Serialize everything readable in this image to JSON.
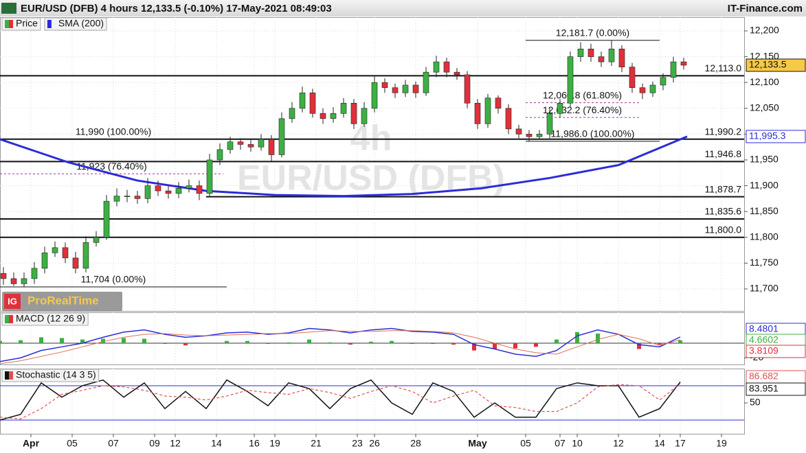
{
  "header": {
    "title": "EUR/USD (DFB) 4 hours 12,133.5 (-0.10%) 17-May-2021 08:49:03",
    "site": "IT-Finance.com",
    "badge": "ProRealTime",
    "badge_logo": "IG"
  },
  "chart_data": [
    {
      "type": "candlestick",
      "legend": [
        "Price",
        "SMA (200)"
      ],
      "watermark": [
        "4h",
        "EUR/USD (DFB)"
      ],
      "x": [
        1,
        4,
        7,
        10,
        13,
        16,
        19,
        22,
        25,
        28,
        31,
        34,
        37,
        40,
        43,
        46,
        49,
        52,
        55,
        58,
        61,
        64,
        67,
        70,
        73,
        76,
        79,
        82,
        85,
        88,
        91,
        94,
        97,
        100,
        103,
        106,
        109,
        112,
        115,
        118,
        121,
        124,
        127,
        130,
        133,
        136,
        139,
        142,
        145,
        148,
        151,
        154,
        157,
        160,
        163,
        166,
        169,
        172,
        175,
        178,
        181,
        184,
        187,
        190,
        193,
        196,
        199
      ],
      "open": [
        11730,
        11720,
        11710,
        11720,
        11740,
        11770,
        11780,
        11760,
        11740,
        11790,
        11800,
        11870,
        11880,
        11880,
        11875,
        11900,
        11890,
        11885,
        11895,
        11900,
        11885,
        11950,
        11970,
        11985,
        11980,
        11975,
        11990,
        11960,
        12030,
        12050,
        12080,
        12040,
        12030,
        12040,
        12060,
        12020,
        12050,
        12100,
        12090,
        12080,
        12095,
        12080,
        12120,
        12140,
        12120,
        12115,
        12060,
        12020,
        12070,
        12050,
        12010,
        12000,
        11995,
        12000,
        12040,
        12060,
        12150,
        12165,
        12150,
        12140,
        12165,
        12130,
        12090,
        12080,
        12095,
        12110,
        12140
      ],
      "high": [
        11742,
        11732,
        11732,
        11752,
        11782,
        11792,
        11790,
        11772,
        11802,
        11812,
        11882,
        11895,
        11892,
        11890,
        11915,
        11910,
        11900,
        11907,
        11912,
        11910,
        11962,
        11982,
        11995,
        11992,
        11990,
        12000,
        11998,
        12042,
        12062,
        12092,
        12088,
        12050,
        12052,
        12070,
        12068,
        12062,
        12112,
        12108,
        12098,
        12105,
        12102,
        12130,
        12152,
        12148,
        12128,
        12122,
        12068,
        12078,
        12075,
        12058,
        12018,
        12008,
        12008,
        12050,
        12068,
        12160,
        12178,
        12175,
        12160,
        12181.7,
        12172,
        12138,
        12098,
        12102,
        12118,
        12150,
        12148
      ],
      "low": [
        11708,
        11706,
        11704,
        11710,
        11730,
        11762,
        11750,
        11730,
        11732,
        11782,
        11795,
        11860,
        11868,
        11865,
        11866,
        11880,
        11875,
        11876,
        11887,
        11872,
        11878,
        11940,
        11962,
        11970,
        11966,
        11968,
        11948,
        11955,
        12022,
        12042,
        12032,
        12020,
        12022,
        12032,
        12010,
        12014,
        12042,
        12080,
        12070,
        12072,
        12070,
        12074,
        12110,
        12110,
        12105,
        12050,
        12010,
        12012,
        12040,
        12000,
        11992,
        11986,
        11989,
        11992,
        12032,
        12052,
        12140,
        12140,
        12130,
        12132,
        12120,
        12080,
        12068,
        12072,
        12085,
        12100,
        12125
      ],
      "close": [
        11720,
        11710,
        11720,
        11740,
        11770,
        11780,
        11760,
        11740,
        11790,
        11800,
        11870,
        11880,
        11880,
        11875,
        11900,
        11890,
        11885,
        11895,
        11900,
        11885,
        11950,
        11970,
        11985,
        11980,
        11975,
        11990,
        11960,
        12030,
        12050,
        12080,
        12040,
        12030,
        12040,
        12060,
        12020,
        12050,
        12100,
        12090,
        12080,
        12095,
        12080,
        12120,
        12140,
        12120,
        12115,
        12060,
        12020,
        12070,
        12050,
        12010,
        12000,
        11995,
        12000,
        12040,
        12060,
        12150,
        12165,
        12150,
        12140,
        12165,
        12130,
        12090,
        12080,
        12095,
        12110,
        12140,
        12133.5
      ],
      "up_color": "#3cb043",
      "down_color": "#e0303a",
      "last": {
        "value": 12133.5,
        "label": "12,133.5"
      },
      "series": [
        {
          "name": "SMA (200)",
          "color": "#2b2bd9",
          "x": [
            0,
            20,
            40,
            60,
            80,
            100,
            120,
            140,
            160,
            180,
            200
          ],
          "values": [
            11990,
            11945,
            11910,
            11890,
            11882,
            11880,
            11884,
            11895,
            11915,
            11940,
            11995.3
          ],
          "tag": {
            "value": 11995.3,
            "label": "11,995.3"
          }
        }
      ],
      "levels": [
        {
          "value": 12113.0,
          "label": "12,113.0",
          "from": 0
        },
        {
          "value": 11990.2,
          "label": "11,990.2",
          "from": 0
        },
        {
          "value": 11946.8,
          "label": "11,946.8",
          "from": 0
        },
        {
          "value": 11878.7,
          "label": "11,878.7",
          "from": 60
        },
        {
          "value": 11835.6,
          "label": "11,835.6",
          "from": 0
        },
        {
          "value": 11800.0,
          "label": "11,800.0",
          "from": 0
        }
      ],
      "fibs": [
        {
          "value": 12181.7,
          "label": "12,181.7 (0.00%)",
          "from": 153,
          "to": 192,
          "style": "solid"
        },
        {
          "value": 12060.8,
          "label": "12,060.8 (61.80%)",
          "from": 153,
          "to": 186,
          "style": "dashed"
        },
        {
          "value": 12032.2,
          "label": "12,032.2 (76.40%)",
          "from": 153,
          "to": 186,
          "style": "dashed"
        },
        {
          "value": 11986.0,
          "label": "11,986.0 (100.00%)",
          "from": 153,
          "to": 192,
          "style": "solid"
        },
        {
          "value": 11990,
          "label": "11,990 (100.00%)",
          "from": 0,
          "to": 66,
          "style": "none"
        },
        {
          "value": 11923,
          "label": "11,923 (76.40%)",
          "from": 0,
          "to": 65,
          "style": "dashed"
        },
        {
          "value": 11704,
          "label": "11,704 (0.00%)",
          "from": 0,
          "to": 66,
          "style": "solid"
        }
      ],
      "xlim": [
        0,
        216.6
      ],
      "ylim": [
        11657.4,
        12226.6
      ],
      "yticks": [
        {
          "value": 11700,
          "label": "11,700"
        },
        {
          "value": 11750,
          "label": "11,750"
        },
        {
          "value": 11800,
          "label": "11,800"
        },
        {
          "value": 11850,
          "label": "11,850"
        },
        {
          "value": 11900,
          "label": "11,900"
        },
        {
          "value": 11950,
          "label": "11,950"
        },
        {
          "value": 12000,
          "label": "12,000"
        },
        {
          "value": 12050,
          "label": "12,050"
        },
        {
          "value": 12100,
          "label": "12,100"
        },
        {
          "value": 12150,
          "label": "12,150"
        },
        {
          "value": 12200,
          "label": "12,200"
        }
      ]
    },
    {
      "type": "macd",
      "legend": [
        "MACD (12 26 9)"
      ],
      "x": [
        0,
        6,
        12,
        18,
        24,
        30,
        36,
        42,
        48,
        54,
        60,
        66,
        72,
        78,
        84,
        90,
        96,
        102,
        108,
        114,
        120,
        126,
        132,
        138,
        144,
        150,
        156,
        162,
        168,
        174,
        180,
        186,
        192,
        198
      ],
      "series": [
        {
          "name": "MACD",
          "color": "#2b2bd9",
          "values": [
            -25,
            -20,
            -10,
            -5,
            0,
            8,
            15,
            18,
            12,
            8,
            10,
            14,
            15,
            12,
            14,
            20,
            18,
            14,
            18,
            20,
            16,
            15,
            12,
            -2,
            -8,
            -15,
            -18,
            -10,
            10,
            18,
            12,
            -2,
            -5,
            8.4801
          ]
        },
        {
          "name": "Signal",
          "color": "#e07050",
          "values": [
            -28,
            -24,
            -18,
            -12,
            -5,
            2,
            8,
            12,
            13,
            11,
            10,
            11,
            12,
            13,
            13,
            15,
            17,
            16,
            16,
            17,
            17,
            16,
            14,
            8,
            0,
            -8,
            -13,
            -15,
            -5,
            5,
            12,
            6,
            -3,
            4.6602
          ]
        },
        {
          "name": "Histogram",
          "color": "#3cb043",
          "neg_color": "#e0303a",
          "values": [
            3,
            4,
            8,
            7,
            5,
            6,
            7,
            6,
            -1,
            -3,
            0,
            3,
            3,
            -1,
            1,
            5,
            1,
            -2,
            2,
            3,
            -1,
            -1,
            -2,
            -10,
            -8,
            -7,
            -5,
            5,
            15,
            13,
            0,
            -8,
            -2,
            3.8109
          ]
        }
      ],
      "xlim": [
        0,
        216.6
      ],
      "ylim": [
        -29,
        42
      ],
      "yticks": [
        -20
      ]
    },
    {
      "type": "stochastic",
      "legend": [
        "Stochastic (14 3 5)"
      ],
      "x": [
        0,
        6,
        12,
        18,
        24,
        30,
        36,
        42,
        48,
        54,
        60,
        66,
        72,
        78,
        84,
        90,
        96,
        102,
        108,
        114,
        120,
        126,
        132,
        138,
        144,
        150,
        156,
        162,
        168,
        174,
        180,
        186,
        192,
        198
      ],
      "series": [
        {
          "name": "%K",
          "color": "#111111",
          "values": [
            20,
            30,
            85,
            60,
            80,
            90,
            60,
            85,
            40,
            70,
            40,
            90,
            70,
            45,
            85,
            75,
            40,
            75,
            90,
            50,
            30,
            85,
            70,
            25,
            50,
            25,
            25,
            75,
            85,
            80,
            80,
            25,
            40,
            86.682
          ]
        },
        {
          "name": "%D",
          "color": "#e05050",
          "values": [
            25,
            22,
            40,
            65,
            72,
            80,
            78,
            72,
            62,
            60,
            55,
            62,
            72,
            68,
            65,
            75,
            68,
            58,
            70,
            80,
            70,
            50,
            62,
            72,
            45,
            42,
            35,
            35,
            50,
            78,
            82,
            80,
            55,
            83.951
          ]
        }
      ],
      "hlines": [
        80,
        20
      ],
      "xlim": [
        0,
        216.6
      ],
      "ylim": [
        -4,
        110
      ],
      "yticks": [
        50
      ],
      "xticks": [
        {
          "value": 9,
          "label": "Apr"
        },
        {
          "value": 21,
          "label": "05"
        },
        {
          "value": 33,
          "label": "07"
        },
        {
          "value": 45,
          "label": "09"
        },
        {
          "value": 51,
          "label": "12"
        },
        {
          "value": 63,
          "label": "14"
        },
        {
          "value": 74,
          "label": "16"
        },
        {
          "value": 80,
          "label": "19"
        },
        {
          "value": 92,
          "label": "21"
        },
        {
          "value": 104,
          "label": "23"
        },
        {
          "value": 109,
          "label": "26"
        },
        {
          "value": 121,
          "label": "28"
        },
        {
          "value": 139,
          "label": "May"
        },
        {
          "value": 153,
          "label": "05"
        },
        {
          "value": 163,
          "label": "07"
        },
        {
          "value": 168,
          "label": "10"
        },
        {
          "value": 180,
          "label": "12"
        },
        {
          "value": 192,
          "label": "14"
        },
        {
          "value": 198,
          "label": "17"
        },
        {
          "value": 210,
          "label": "19"
        }
      ]
    }
  ]
}
